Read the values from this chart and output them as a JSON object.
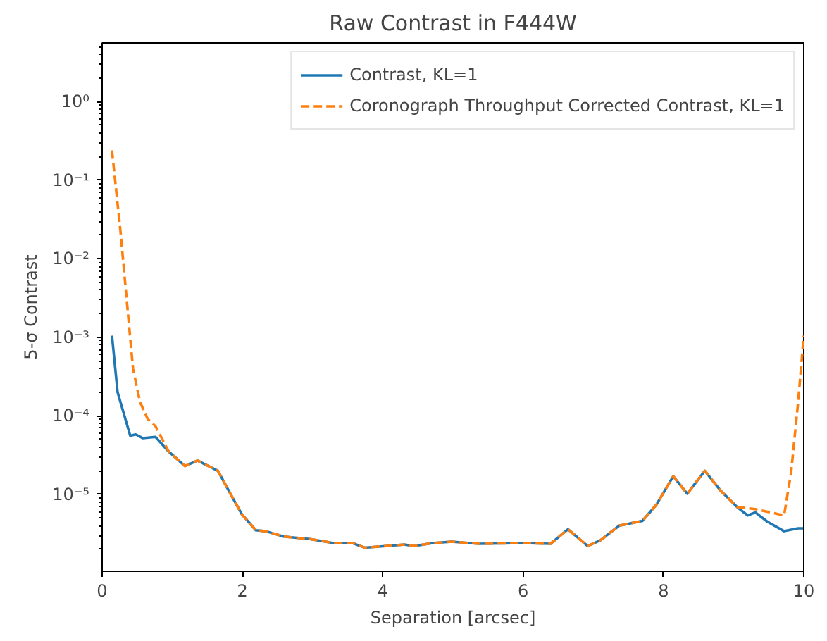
{
  "chart_data": {
    "type": "line",
    "title": "Raw Contrast in F444W",
    "xlabel": "Separation [arcsec]",
    "ylabel": "5-σ Contrast",
    "log": "y",
    "grid": false,
    "legend": "top right",
    "xlim": [
      0,
      10
    ],
    "ylim": [
      1.05e-06,
      5.6
    ],
    "xticks": [
      0,
      2,
      4,
      6,
      8,
      10
    ],
    "yticks": [
      {
        "value": 1e-05,
        "label": "10⁻⁵"
      },
      {
        "value": 0.0001,
        "label": "10⁻⁴"
      },
      {
        "value": 0.001,
        "label": "10⁻³"
      },
      {
        "value": 0.01,
        "label": "10⁻²"
      },
      {
        "value": 0.1,
        "label": "10⁻¹"
      },
      {
        "value": 1,
        "label": "10⁰"
      }
    ],
    "series": [
      {
        "name": "Contrast, KL=1",
        "color": "#1f77b4",
        "line_style": "solid",
        "x": [
          0.14,
          0.22,
          0.4,
          0.48,
          0.58,
          0.76,
          0.95,
          1.18,
          1.36,
          1.65,
          1.82,
          1.99,
          2.19,
          2.33,
          2.59,
          2.96,
          3.3,
          3.57,
          3.74,
          4.04,
          4.31,
          4.44,
          4.71,
          4.98,
          5.38,
          5.99,
          6.39,
          6.64,
          6.92,
          7.1,
          7.37,
          7.7,
          7.9,
          8.14,
          8.34,
          8.59,
          8.81,
          9.05,
          9.2,
          9.31,
          9.48,
          9.72,
          9.92,
          9.99
        ],
        "values": [
          0.00105,
          0.0002,
          5.6e-05,
          5.8e-05,
          5.2e-05,
          5.4e-05,
          3.5e-05,
          2.3e-05,
          2.7e-05,
          2e-05,
          1.05e-05,
          5.6e-06,
          3.5e-06,
          3.4e-06,
          2.9e-06,
          2.7e-06,
          2.4e-06,
          2.4e-06,
          2.1e-06,
          2.2e-06,
          2.3e-06,
          2.2e-06,
          2.4e-06,
          2.5e-06,
          2.35e-06,
          2.4e-06,
          2.35e-06,
          3.6e-06,
          2.2e-06,
          2.6e-06,
          4e-06,
          4.6e-06,
          7.4e-06,
          1.7e-05,
          1.02e-05,
          2e-05,
          1.13e-05,
          6.9e-06,
          5.4e-06,
          5.9e-06,
          4.5e-06,
          3.4e-06,
          3.7e-06,
          3.7e-06
        ]
      },
      {
        "name": "Coronograph Throughput Corrected Contrast, KL=1",
        "color": "#ff7f0e",
        "line_style": "dashed",
        "x": [
          0.14,
          0.26,
          0.36,
          0.44,
          0.54,
          0.65,
          0.76,
          0.95,
          1.18,
          1.36,
          1.65,
          1.82,
          1.99,
          2.19,
          2.33,
          2.59,
          2.96,
          3.3,
          3.57,
          3.74,
          4.04,
          4.31,
          4.44,
          4.71,
          4.98,
          5.38,
          5.99,
          6.39,
          6.64,
          6.92,
          7.1,
          7.37,
          7.7,
          7.9,
          8.14,
          8.34,
          8.59,
          8.81,
          9.05,
          9.31,
          9.72,
          9.82,
          9.92,
          10.0
        ],
        "values": [
          0.24,
          0.023,
          0.0024,
          0.0004,
          0.00015,
          9.1e-05,
          7.4e-05,
          3.5e-05,
          2.3e-05,
          2.7e-05,
          2e-05,
          1.05e-05,
          5.6e-06,
          3.5e-06,
          3.4e-06,
          2.9e-06,
          2.7e-06,
          2.4e-06,
          2.4e-06,
          2.1e-06,
          2.2e-06,
          2.3e-06,
          2.2e-06,
          2.4e-06,
          2.5e-06,
          2.35e-06,
          2.4e-06,
          2.35e-06,
          3.6e-06,
          2.2e-06,
          2.6e-06,
          4e-06,
          4.6e-06,
          7.4e-06,
          1.7e-05,
          1.02e-05,
          2e-05,
          1.13e-05,
          6.9e-06,
          6.5e-06,
          5.4e-06,
          1.9e-05,
          0.00015,
          0.00105
        ]
      }
    ]
  }
}
